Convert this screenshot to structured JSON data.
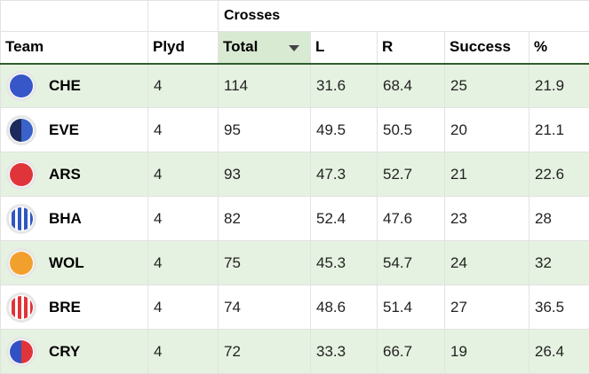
{
  "group_header": "Crosses",
  "columns": [
    "Team",
    "Plyd",
    "Total",
    "L",
    "R",
    "Success",
    "%"
  ],
  "colors": {
    "sorted_header_bg": "#d9ead3",
    "row_shade": "#e6f2e1",
    "header_rule": "#2f5d2f"
  },
  "rows": [
    {
      "team": "CHE",
      "plyd": "4",
      "total": "114",
      "l": "31.6",
      "r": "68.4",
      "success": "25",
      "pct": "21.9",
      "icon": "che-badge-icon"
    },
    {
      "team": "EVE",
      "plyd": "4",
      "total": "95",
      "l": "49.5",
      "r": "50.5",
      "success": "20",
      "pct": "21.1",
      "icon": "eve-badge-icon"
    },
    {
      "team": "ARS",
      "plyd": "4",
      "total": "93",
      "l": "47.3",
      "r": "52.7",
      "success": "21",
      "pct": "22.6",
      "icon": "ars-badge-icon"
    },
    {
      "team": "BHA",
      "plyd": "4",
      "total": "82",
      "l": "52.4",
      "r": "47.6",
      "success": "23",
      "pct": "28",
      "icon": "bha-badge-icon"
    },
    {
      "team": "WOL",
      "plyd": "4",
      "total": "75",
      "l": "45.3",
      "r": "54.7",
      "success": "24",
      "pct": "32",
      "icon": "wol-badge-icon"
    },
    {
      "team": "BRE",
      "plyd": "4",
      "total": "74",
      "l": "48.6",
      "r": "51.4",
      "success": "27",
      "pct": "36.5",
      "icon": "bre-badge-icon"
    },
    {
      "team": "CRY",
      "plyd": "4",
      "total": "72",
      "l": "33.3",
      "r": "66.7",
      "success": "19",
      "pct": "26.4",
      "icon": "cry-badge-icon"
    }
  ]
}
